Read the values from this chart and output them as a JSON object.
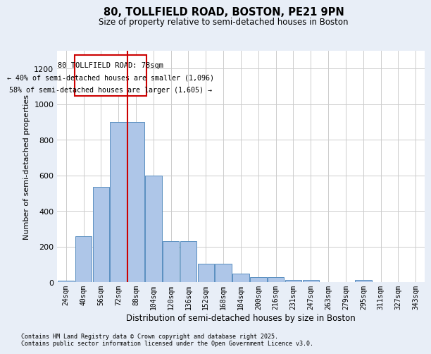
{
  "title_line1": "80, TOLLFIELD ROAD, BOSTON, PE21 9PN",
  "title_line2": "Size of property relative to semi-detached houses in Boston",
  "xlabel": "Distribution of semi-detached houses by size in Boston",
  "ylabel": "Number of semi-detached properties",
  "categories": [
    "24sqm",
    "40sqm",
    "56sqm",
    "72sqm",
    "88sqm",
    "104sqm",
    "120sqm",
    "136sqm",
    "152sqm",
    "168sqm",
    "184sqm",
    "200sqm",
    "216sqm",
    "231sqm",
    "247sqm",
    "263sqm",
    "279sqm",
    "295sqm",
    "311sqm",
    "327sqm",
    "343sqm"
  ],
  "values": [
    10,
    260,
    535,
    900,
    900,
    600,
    230,
    230,
    105,
    105,
    50,
    30,
    30,
    15,
    15,
    0,
    0,
    15,
    0,
    0,
    0
  ],
  "bar_color": "#aec6e8",
  "bar_edge_color": "#5a8fc0",
  "grid_color": "#cccccc",
  "vline_color": "#cc0000",
  "annotation_title": "80 TOLLFIELD ROAD: 78sqm",
  "annotation_line2": "← 40% of semi-detached houses are smaller (1,096)",
  "annotation_line3": "58% of semi-detached houses are larger (1,605) →",
  "annotation_box_color": "#cc0000",
  "footnote_line1": "Contains HM Land Registry data © Crown copyright and database right 2025.",
  "footnote_line2": "Contains public sector information licensed under the Open Government Licence v3.0.",
  "ylim": [
    0,
    1300
  ],
  "yticks": [
    0,
    200,
    400,
    600,
    800,
    1000,
    1200
  ],
  "background_color": "#e8eef7",
  "plot_bg_color": "#ffffff"
}
